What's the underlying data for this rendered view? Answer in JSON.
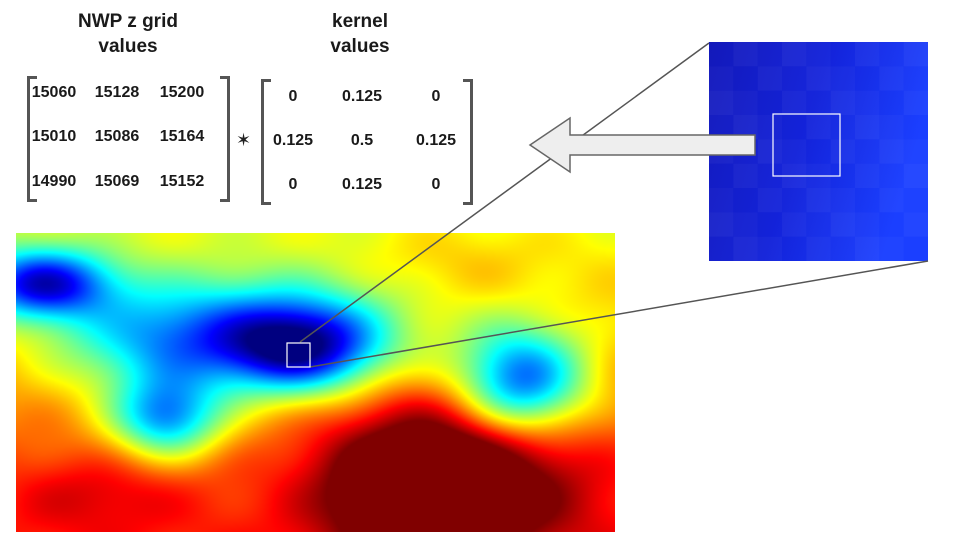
{
  "grid_title": {
    "line1": "NWP z grid",
    "line2": "values"
  },
  "kernel_title": {
    "line1": "kernel",
    "line2": "values"
  },
  "grid_values": [
    [
      "15060",
      "15128",
      "15200"
    ],
    [
      "15010",
      "15086",
      "15164"
    ],
    [
      "14990",
      "15069",
      "15152"
    ]
  ],
  "kernel_values": [
    [
      "0",
      "0.125",
      "0"
    ],
    [
      "0.125",
      "0.5",
      "0.125"
    ],
    [
      "0",
      "0.125",
      "0"
    ]
  ],
  "operator_symbol": "✶",
  "colors": {
    "bracket": "#555555",
    "connector": "#555555",
    "arrow_fill": "#eeeeee",
    "arrow_stroke": "#666666",
    "highlight_box": "#ffffff",
    "zoom_blue_dark": "#0a14c8",
    "zoom_blue": "#0f28ff"
  },
  "heatmap_colormap": "jet"
}
